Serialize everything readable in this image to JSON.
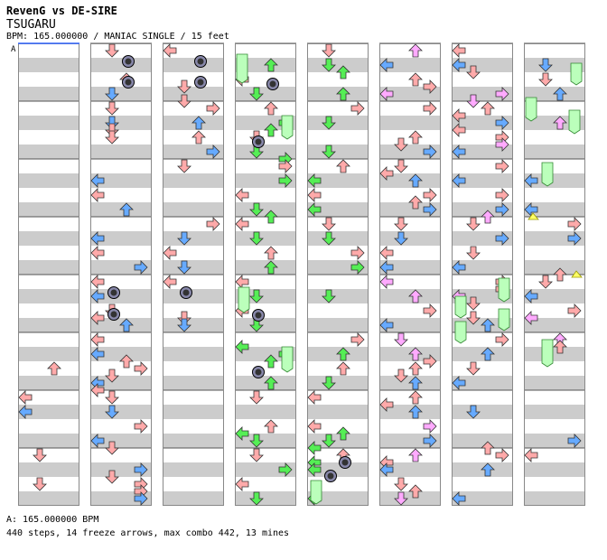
{
  "header": {
    "title": "RevenG vs DE-SIRE",
    "song": "TSUGARU",
    "meta": "BPM: 165.000000 / MANIAC SINGLE / 15 feet"
  },
  "section_label": "A",
  "footer": {
    "bpm": "A: 165.000000 BPM",
    "stats": "440 steps, 14 freeze arrows, max combo 442, 13 mines"
  },
  "colors": {
    "stripe": "#cccccc",
    "border": "#888888",
    "arrow_red": "#ffaaaa",
    "arrow_blue": "#66aaff",
    "arrow_green": "#55ee55",
    "arrow_pink": "#ffaaff",
    "freeze_green": "#bbffbb",
    "mine_dark": "#333333",
    "mine_ring": "#8888aa",
    "sp_yellow": "#ffff66"
  }
}
